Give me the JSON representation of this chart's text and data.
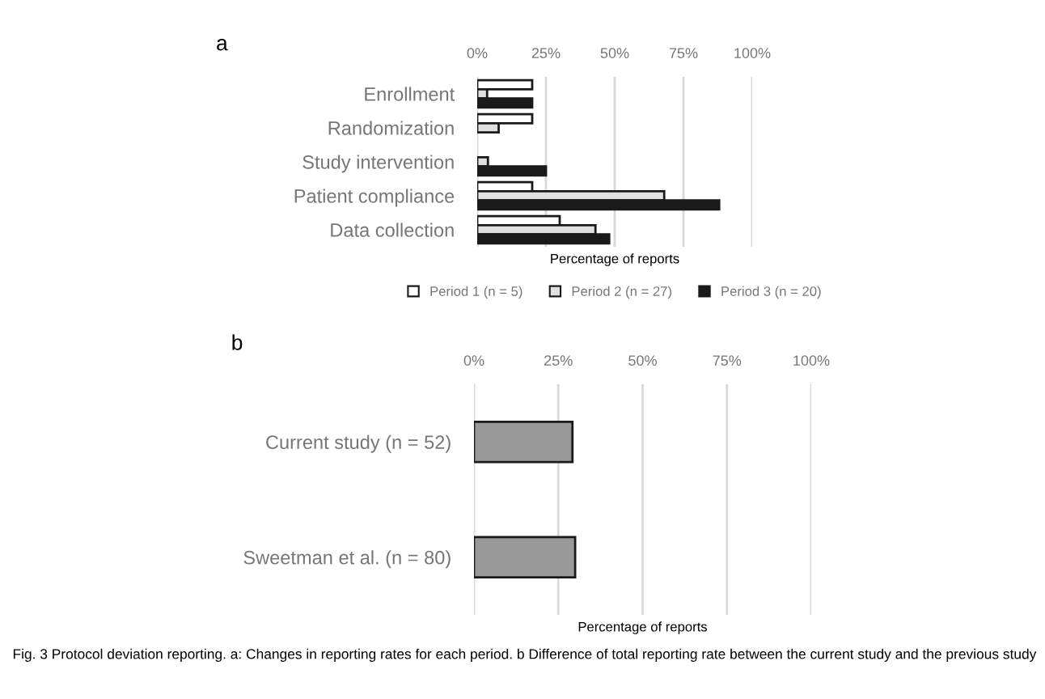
{
  "chart_data": [
    {
      "type": "bar",
      "orientation": "horizontal",
      "title": "a",
      "xlabel": "Percentage of reports",
      "categories": [
        "Enrollment",
        "Randomization",
        "Study intervention",
        "Patient compliance",
        "Data collection"
      ],
      "series": [
        {
          "name": "Period 1 (n = 5)",
          "color": "#ffffff",
          "values": [
            20,
            20,
            0,
            20,
            30
          ]
        },
        {
          "name": "Period 2 (n = 27)",
          "color": "#e0e0e0",
          "values": [
            3.6,
            7.8,
            3.9,
            68,
            43
          ]
        },
        {
          "name": "Period 3 (n = 20)",
          "color": "#1a1a1a",
          "values": [
            20,
            0,
            25,
            88,
            48
          ]
        }
      ],
      "xlim": [
        0,
        100
      ],
      "xticks": [
        {
          "value": 0,
          "label": "0%"
        },
        {
          "value": 25,
          "label": "25%"
        },
        {
          "value": 50,
          "label": "50%"
        },
        {
          "value": 75,
          "label": "75%"
        },
        {
          "value": 100,
          "label": "100%"
        }
      ],
      "grid": "x",
      "legend": "bottom"
    },
    {
      "type": "bar",
      "orientation": "horizontal",
      "title": "b",
      "xlabel": "Percentage of reports",
      "categories": [
        "Current study (n = 52)",
        "Sweetman et al. (n = 80)"
      ],
      "series": [
        {
          "color": "#999999",
          "values": [
            29.2,
            30
          ]
        }
      ],
      "xlim": [
        0,
        100
      ],
      "xticks": [
        {
          "value": 0,
          "label": "0%"
        },
        {
          "value": 25,
          "label": "25%"
        },
        {
          "value": 50,
          "label": "50%"
        },
        {
          "value": 75,
          "label": "75%"
        },
        {
          "value": 100,
          "label": "100%"
        }
      ],
      "grid": "x",
      "annotations": [
        "Fig. 3 Protocol deviation reporting. a: Changes in reporting rates for each period. b Difference of total reporting rate between the current study and the previous study"
      ]
    }
  ]
}
